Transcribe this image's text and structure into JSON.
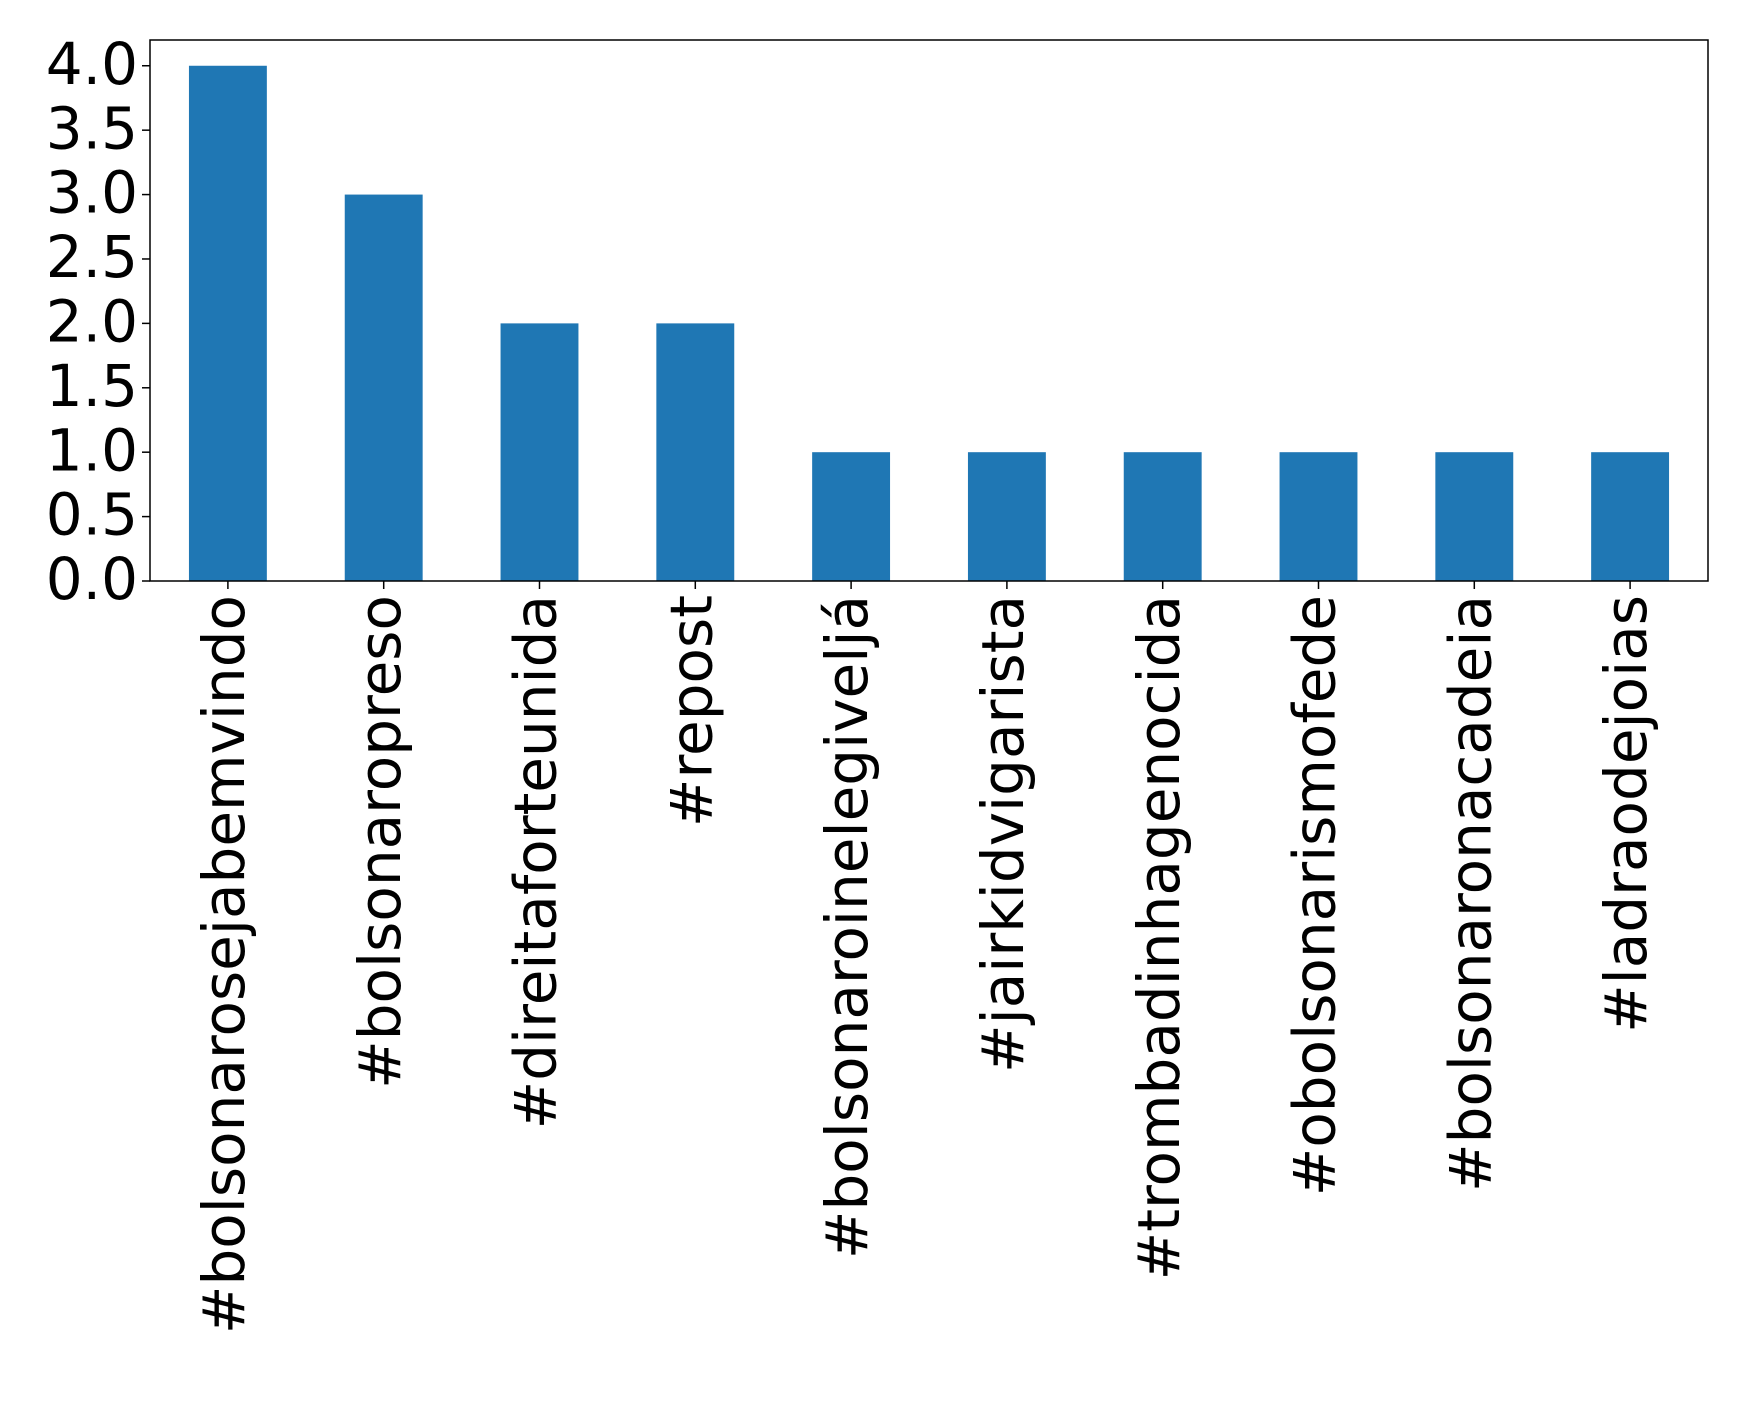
{
  "chart_data": {
    "type": "bar",
    "categories": [
      "#bolsonarosejabemvindo",
      "#bolsonaropreso",
      "#direitaforteunida",
      "#repost",
      "#bolsonaroinelegiveljá",
      "#jairkidvigarista",
      "#trombadinhagenocida",
      "#obolsonarismofede",
      "#bolsonaronacadeia",
      "#ladraodejoias"
    ],
    "values": [
      4,
      3,
      2,
      2,
      1,
      1,
      1,
      1,
      1,
      1
    ],
    "color": "#1f77b4",
    "ylim": [
      0,
      4.2
    ],
    "yticks": [
      {
        "value": 0,
        "label": "0.0"
      },
      {
        "value": 0.5,
        "label": "0.5"
      },
      {
        "value": 1,
        "label": "1.0"
      },
      {
        "value": 1.5,
        "label": "1.5"
      },
      {
        "value": 2,
        "label": "2.0"
      },
      {
        "value": 2.5,
        "label": "2.5"
      },
      {
        "value": 3,
        "label": "3.0"
      },
      {
        "value": 3.5,
        "label": "3.5"
      },
      {
        "value": 4,
        "label": "4.0"
      }
    ],
    "grid": false
  }
}
